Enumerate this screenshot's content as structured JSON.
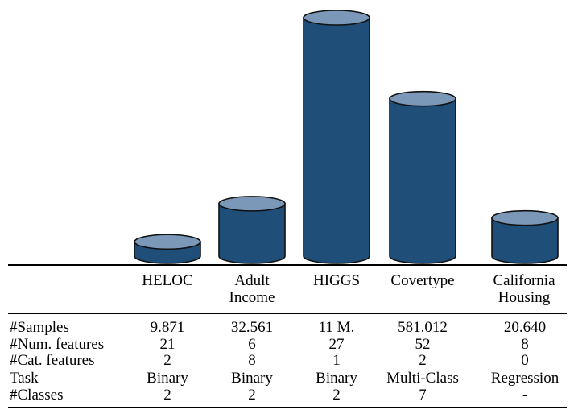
{
  "chart_data": {
    "type": "bar",
    "style": "3d-cylinder",
    "categories": [
      "HELOC",
      "Adult\nIncome",
      "HIGGS",
      "Covertype",
      "California\nHousing"
    ],
    "colors": {
      "bar_body": "#1f4e79",
      "bar_top": "#7b98b8",
      "outline": "#111111"
    },
    "table": {
      "row_labels": [
        "#Samples",
        "#Num. features",
        "#Cat. features",
        "Task",
        "#Classes"
      ],
      "rows": [
        [
          "9.871",
          "32.561",
          "11 M.",
          "581.012",
          "20.640"
        ],
        [
          "21",
          "6",
          "27",
          "52",
          "8"
        ],
        [
          "2",
          "8",
          "1",
          "2",
          "0"
        ],
        [
          "Binary",
          "Binary",
          "Binary",
          "Multi-Class",
          "Regression"
        ],
        [
          "2",
          "2",
          "2",
          "7",
          "-"
        ]
      ]
    },
    "bar_relative_heights": [
      0.06,
      0.22,
      1.0,
      0.66,
      0.16
    ]
  }
}
